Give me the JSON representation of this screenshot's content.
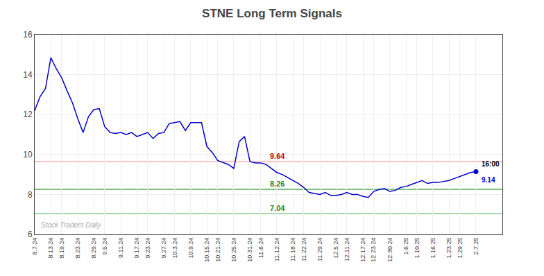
{
  "chart_data": {
    "type": "line",
    "title": "STNE Long Term Signals",
    "categories": [
      "8.7.24",
      null,
      null,
      "8.13.24",
      null,
      "8.19.24",
      null,
      null,
      "8.23.24",
      null,
      null,
      "8.29.24",
      null,
      "9.5.24",
      null,
      null,
      "9.11.24",
      null,
      null,
      "9.17.24",
      null,
      "9.23.24",
      null,
      null,
      "9.27.24",
      null,
      "10.3.24",
      null,
      null,
      "10.9.24",
      null,
      null,
      "10.15.24",
      null,
      "10.21.24",
      null,
      null,
      "10.25.24",
      null,
      null,
      "10.31.24",
      null,
      "11.6.24",
      null,
      null,
      "11.12.24",
      null,
      null,
      "11.18.24",
      null,
      "11.22.24",
      null,
      null,
      "11.29.24",
      null,
      null,
      "12.5.24",
      null,
      "12.11.24",
      null,
      null,
      "12.17.24",
      null,
      "12.23.24",
      null,
      null,
      "12.30.24",
      null,
      null,
      "1.6.25",
      null,
      "1.10.25",
      null,
      null,
      "1.16.25",
      null,
      null,
      "1.23.25",
      null,
      "1.29.25",
      null,
      null,
      "2.7.25"
    ],
    "values": [
      12.2,
      12.9,
      13.3,
      14.85,
      14.3,
      13.85,
      13.2,
      12.6,
      11.8,
      11.1,
      11.9,
      12.25,
      12.3,
      11.4,
      11.1,
      11.05,
      11.1,
      11.0,
      11.1,
      10.9,
      11.0,
      11.1,
      10.8,
      11.05,
      11.1,
      11.55,
      11.6,
      11.65,
      11.2,
      11.6,
      11.6,
      11.6,
      10.4,
      10.1,
      9.7,
      9.6,
      9.5,
      9.3,
      10.65,
      10.9,
      9.65,
      9.58,
      9.58,
      9.5,
      9.3,
      9.1,
      9.0,
      8.85,
      8.7,
      8.55,
      8.35,
      8.1,
      8.05,
      8.0,
      8.1,
      7.95,
      7.95,
      8.0,
      8.1,
      8.0,
      8.0,
      7.9,
      7.85,
      8.15,
      8.25,
      8.3,
      8.15,
      8.2,
      8.35,
      8.4,
      8.5,
      8.6,
      8.7,
      8.55,
      8.6,
      8.6,
      8.65,
      8.7,
      8.8,
      8.9,
      9.0,
      9.1,
      9.14
    ],
    "color": "#0000cc",
    "ylim": [
      6,
      16
    ],
    "yticks": [
      6,
      8,
      10,
      12,
      14,
      16
    ],
    "grid": true,
    "hlines": [
      {
        "value": 9.64,
        "label": "9.64",
        "color": "#ffaaaa",
        "label_color": "#cc0000"
      },
      {
        "value": 8.26,
        "label": "8.26",
        "color": "#55aa55",
        "label_color": "#228822"
      },
      {
        "value": 7.04,
        "label": "7.04",
        "color": "#88cc88",
        "label_color": "#228822"
      }
    ],
    "annotations": [
      {
        "text": "16:00",
        "color": "#000000"
      },
      {
        "text": "9.14",
        "color": "#0000cc"
      }
    ],
    "watermark": {
      "text": "Stock Traders Daily",
      "color": "#aaaaaa"
    }
  }
}
